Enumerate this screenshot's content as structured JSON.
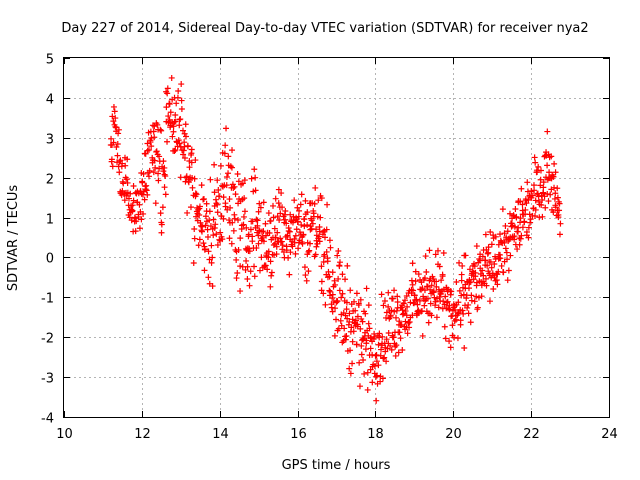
{
  "chart_data": {
    "type": "scatter",
    "title": "Day 227 of 2014, Sidereal Day-to-day VTEC variation (SDTVAR) for receiver nya2",
    "xlabel": "GPS time / hours",
    "ylabel": "SDTVAR / TECUs",
    "xlim": [
      10,
      24
    ],
    "ylim": [
      -4,
      5
    ],
    "xticks": [
      10,
      12,
      14,
      16,
      18,
      20,
      22,
      24
    ],
    "yticks": [
      -4,
      -3,
      -2,
      -1,
      0,
      1,
      2,
      3,
      4,
      5
    ],
    "grid": true,
    "marker": "+",
    "color": "#ff0000",
    "series": [
      {
        "name": "nya2",
        "trend": {
          "x": [
            11.2,
            11.3,
            11.45,
            11.6,
            11.8,
            12.0,
            12.2,
            12.4,
            12.5,
            12.7,
            12.9,
            13.1,
            13.3,
            13.5,
            13.7,
            13.9,
            14.1,
            14.3,
            14.5,
            14.7,
            14.9,
            15.1,
            15.3,
            15.5,
            15.8,
            16.0,
            16.2,
            16.4,
            16.6,
            16.8,
            17.0,
            17.2,
            17.4,
            17.6,
            17.8,
            18.0,
            18.2,
            18.4,
            18.6,
            18.8,
            19.0,
            19.2,
            19.4,
            19.6,
            19.8,
            20.0,
            20.2,
            20.4,
            20.6,
            20.8,
            21.0,
            21.2,
            21.4,
            21.6,
            21.8,
            22.0,
            22.2,
            22.4,
            22.6,
            22.75
          ],
          "y": [
            2.2,
            3.6,
            2.0,
            1.6,
            1.1,
            1.6,
            2.6,
            3.1,
            1.2,
            3.9,
            3.3,
            2.9,
            1.6,
            1.0,
            0.4,
            1.2,
            2.0,
            1.3,
            0.7,
            0.4,
            0.9,
            0.5,
            0.3,
            0.8,
            0.7,
            0.9,
            0.5,
            0.9,
            0.6,
            -0.2,
            -0.9,
            -1.4,
            -1.6,
            -1.9,
            -2.1,
            -2.3,
            -2.0,
            -1.7,
            -1.5,
            -1.3,
            -1.1,
            -1.0,
            -0.8,
            -0.6,
            -1.2,
            -1.6,
            -1.1,
            -0.7,
            -0.6,
            -0.4,
            -0.2,
            0.0,
            0.4,
            0.7,
            1.1,
            1.4,
            1.8,
            2.2,
            1.8,
            1.2
          ]
        },
        "spread": {
          "x": [
            11.2,
            11.5,
            12.0,
            12.5,
            13.0,
            13.5,
            14.0,
            14.5,
            15.0,
            15.5,
            16.0,
            16.5,
            17.0,
            17.5,
            18.0,
            18.5,
            19.0,
            19.5,
            20.0,
            20.5,
            21.0,
            21.5,
            22.0,
            22.5,
            22.75
          ],
          "y": [
            0.6,
            0.5,
            0.7,
            1.1,
            1.0,
            0.9,
            1.2,
            1.1,
            0.9,
            0.8,
            0.7,
            0.9,
            0.9,
            0.9,
            0.8,
            0.7,
            0.6,
            0.7,
            0.8,
            0.7,
            0.6,
            0.6,
            0.7,
            0.6,
            0.5
          ]
        },
        "point_count": 1200
      }
    ]
  }
}
